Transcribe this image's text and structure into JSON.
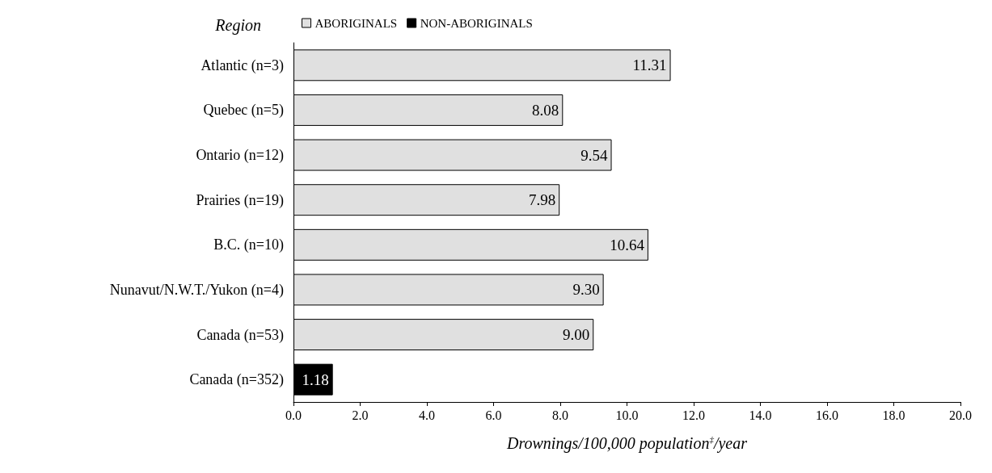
{
  "chart_data": {
    "type": "bar",
    "orientation": "horizontal",
    "ylabel": "Region",
    "xlabel": "Drownings/100,000 population$^{‡}$/year",
    "categories": [
      "Atlantic (n=3)",
      "Quebec (n=5)",
      "Ontario (n=12)",
      "Prairies (n=19)",
      "B.C. (n=10)",
      "Nunavut/N.W.T./Yukon (n=4)",
      "Canada (n=53)",
      "Canada (n=352)"
    ],
    "series": [
      {
        "name": "ABORIGINALS",
        "color": "#e0e0e0",
        "values": [
          11.31,
          8.08,
          9.54,
          7.98,
          10.64,
          9.3,
          9.0,
          null
        ],
        "value_labels": [
          "11.31",
          "8.08",
          "9.54",
          "7.98",
          "10.64",
          "9.30",
          "9.00",
          null
        ]
      },
      {
        "name": "NON-ABORIGINALS",
        "color": "#000000",
        "values": [
          null,
          null,
          null,
          null,
          null,
          null,
          null,
          1.18
        ],
        "value_labels": [
          null,
          null,
          null,
          null,
          null,
          null,
          null,
          "1.18"
        ]
      }
    ],
    "xlim": [
      0,
      20
    ],
    "xticks": [
      {
        "value": 0,
        "label": "0.0"
      },
      {
        "value": 2,
        "label": "2.0"
      },
      {
        "value": 4,
        "label": "4.0"
      },
      {
        "value": 6,
        "label": "6.0"
      },
      {
        "value": 8,
        "label": "8.0"
      },
      {
        "value": 10,
        "label": "10.0"
      },
      {
        "value": 12,
        "label": "12.0"
      },
      {
        "value": 14,
        "label": "14.0"
      },
      {
        "value": 16,
        "label": "16.0"
      },
      {
        "value": 18,
        "label": "18.0"
      },
      {
        "value": 20,
        "label": "20.0"
      }
    ],
    "legend": "top",
    "grid": false
  }
}
